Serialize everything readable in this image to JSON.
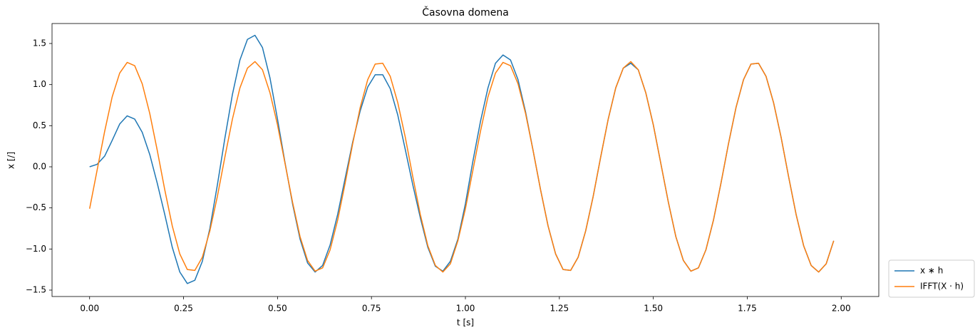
{
  "chart_data": {
    "type": "line",
    "title": "Časovna domena",
    "xlabel": "t [s]",
    "ylabel": "x [/]",
    "x": [
      0,
      0.02,
      0.04,
      0.06,
      0.08,
      0.1,
      0.12,
      0.14,
      0.16,
      0.18,
      0.2,
      0.22,
      0.24,
      0.26,
      0.28,
      0.3,
      0.32,
      0.34,
      0.36,
      0.38,
      0.4,
      0.42,
      0.44,
      0.46,
      0.48,
      0.5,
      0.52,
      0.54,
      0.56,
      0.58,
      0.6,
      0.62,
      0.64,
      0.66,
      0.68,
      0.7,
      0.72,
      0.74,
      0.76,
      0.78,
      0.8,
      0.82,
      0.84,
      0.86,
      0.88,
      0.9,
      0.92,
      0.94,
      0.96,
      0.98,
      1.0,
      1.02,
      1.04,
      1.06,
      1.08,
      1.1,
      1.12,
      1.14,
      1.16,
      1.18,
      1.2,
      1.22,
      1.24,
      1.26,
      1.28,
      1.3,
      1.32,
      1.34,
      1.36,
      1.38,
      1.4,
      1.42,
      1.44,
      1.46,
      1.48,
      1.5,
      1.52,
      1.54,
      1.56,
      1.58,
      1.6,
      1.62,
      1.64,
      1.66,
      1.68,
      1.7,
      1.72,
      1.74,
      1.76,
      1.78,
      1.8,
      1.82,
      1.84,
      1.86,
      1.88,
      1.9,
      1.92,
      1.94,
      1.96,
      1.98
    ],
    "series": [
      {
        "name": "x ∗ h",
        "color": "#1f77b4",
        "values": [
          0,
          0.03,
          0.13,
          0.32,
          0.52,
          0.62,
          0.58,
          0.42,
          0.15,
          -0.2,
          -0.58,
          -0.98,
          -1.28,
          -1.42,
          -1.38,
          -1.15,
          -0.75,
          -0.22,
          0.35,
          0.88,
          1.3,
          1.55,
          1.6,
          1.45,
          1.08,
          0.58,
          0.05,
          -0.45,
          -0.88,
          -1.17,
          -1.28,
          -1.2,
          -0.95,
          -0.58,
          -0.14,
          0.3,
          0.68,
          0.97,
          1.12,
          1.12,
          0.95,
          0.63,
          0.21,
          -0.22,
          -0.62,
          -0.98,
          -1.21,
          -1.27,
          -1.15,
          -0.88,
          -0.45,
          0.07,
          0.55,
          0.96,
          1.26,
          1.36,
          1.3,
          1.06,
          0.67,
          0.2,
          -0.28,
          -0.72,
          -1.06,
          -1.25,
          -1.26,
          -1.1,
          -0.78,
          -0.36,
          0.12,
          0.58,
          0.96,
          1.2,
          1.26,
          1.18,
          0.9,
          0.51,
          0.04,
          -0.43,
          -0.85,
          -1.14,
          -1.27,
          -1.23,
          -1.01,
          -0.65,
          -0.2,
          0.28,
          0.72,
          1.06,
          1.25,
          1.26,
          1.1,
          0.78,
          0.36,
          -0.12,
          -0.58,
          -0.96,
          -1.2,
          -1.28,
          -1.18,
          -0.9
        ]
      },
      {
        "name": "IFFT(X · h)",
        "color": "#ff7f0e",
        "values": [
          -0.51,
          -0.04,
          0.43,
          0.85,
          1.14,
          1.27,
          1.23,
          1.01,
          0.65,
          0.2,
          -0.28,
          -0.72,
          -1.06,
          -1.25,
          -1.26,
          -1.1,
          -0.78,
          -0.36,
          0.12,
          0.58,
          0.96,
          1.2,
          1.28,
          1.18,
          0.9,
          0.51,
          0.04,
          -0.43,
          -0.85,
          -1.14,
          -1.27,
          -1.23,
          -1.01,
          -0.65,
          -0.2,
          0.28,
          0.72,
          1.06,
          1.25,
          1.26,
          1.1,
          0.78,
          0.36,
          -0.12,
          -0.58,
          -0.96,
          -1.2,
          -1.28,
          -1.18,
          -0.9,
          -0.51,
          -0.04,
          0.43,
          0.85,
          1.14,
          1.27,
          1.23,
          1.01,
          0.65,
          0.2,
          -0.28,
          -0.72,
          -1.06,
          -1.25,
          -1.26,
          -1.1,
          -0.78,
          -0.36,
          0.12,
          0.58,
          0.96,
          1.2,
          1.28,
          1.18,
          0.9,
          0.51,
          0.04,
          -0.43,
          -0.85,
          -1.14,
          -1.27,
          -1.23,
          -1.01,
          -0.65,
          -0.2,
          0.28,
          0.72,
          1.06,
          1.25,
          1.26,
          1.1,
          0.78,
          0.36,
          -0.12,
          -0.58,
          -0.96,
          -1.2,
          -1.28,
          -1.18,
          -0.9
        ]
      }
    ],
    "xlim": [
      -0.1,
      2.1
    ],
    "xticks": [
      {
        "value": 0,
        "label": "0.00"
      },
      {
        "value": 0.25,
        "label": "0.25"
      },
      {
        "value": 0.5,
        "label": "0.50"
      },
      {
        "value": 0.75,
        "label": "0.75"
      },
      {
        "value": 1,
        "label": "1.00"
      },
      {
        "value": 1.25,
        "label": "1.25"
      },
      {
        "value": 1.5,
        "label": "1.50"
      },
      {
        "value": 1.75,
        "label": "1.75"
      },
      {
        "value": 2,
        "label": "2.00"
      }
    ],
    "ylim": [
      -1.578,
      1.743
    ],
    "yticks": [
      {
        "value": -1.5,
        "label": "−1.5"
      },
      {
        "value": -1,
        "label": "−1.0"
      },
      {
        "value": -0.5,
        "label": "−0.5"
      },
      {
        "value": 0,
        "label": "0.0"
      },
      0.5,
      {
        "value": 1,
        "label": "1.0"
      },
      1.5
    ],
    "grid": false,
    "legend": "outside lower right"
  }
}
